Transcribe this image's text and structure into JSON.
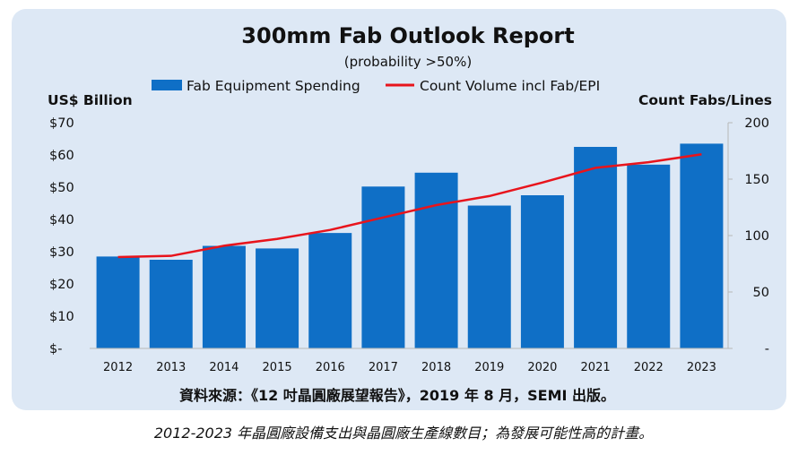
{
  "chart_data": {
    "type": "bar",
    "title": "300mm Fab Outlook Report",
    "subtitle": "(probability >50%)",
    "categories": [
      "2012",
      "2013",
      "2014",
      "2015",
      "2016",
      "2017",
      "2018",
      "2019",
      "2020",
      "2021",
      "2022",
      "2023"
    ],
    "series": [
      {
        "name": "Fab Equipment Spending",
        "kind": "bar",
        "axis": "left",
        "color": "#0f6fc6",
        "values": [
          28.5,
          27.5,
          31.8,
          31,
          35.8,
          50.2,
          54.5,
          44.3,
          47.5,
          62.5,
          57,
          63.5
        ]
      },
      {
        "name": "Count Volume incl Fab/EPI",
        "kind": "line",
        "axis": "right",
        "color": "#e8141c",
        "values": [
          81,
          82,
          91,
          97,
          105,
          116,
          127,
          135,
          147,
          160,
          165,
          172
        ]
      }
    ],
    "ylabel_left": "US$ Billion",
    "ylabel_right": "Count Fabs/Lines",
    "ylim_left": [
      0,
      70
    ],
    "ylim_right": [
      0,
      200
    ],
    "yticks_left": [
      "$-",
      "$10",
      "$20",
      "$30",
      "$40",
      "$50",
      "$60",
      "$70"
    ],
    "yticks_right": [
      "-",
      "50",
      "100",
      "150",
      "200"
    ],
    "legend_position": "top",
    "grid": false
  },
  "source_note": "資料來源：《12 吋晶圓廠展望報告》，2019 年 8 月，SEMI 出版。",
  "caption": "2012-2023 年晶圓廠設備支出與晶圓廠生產線數目；為發展可能性高的計畫。"
}
